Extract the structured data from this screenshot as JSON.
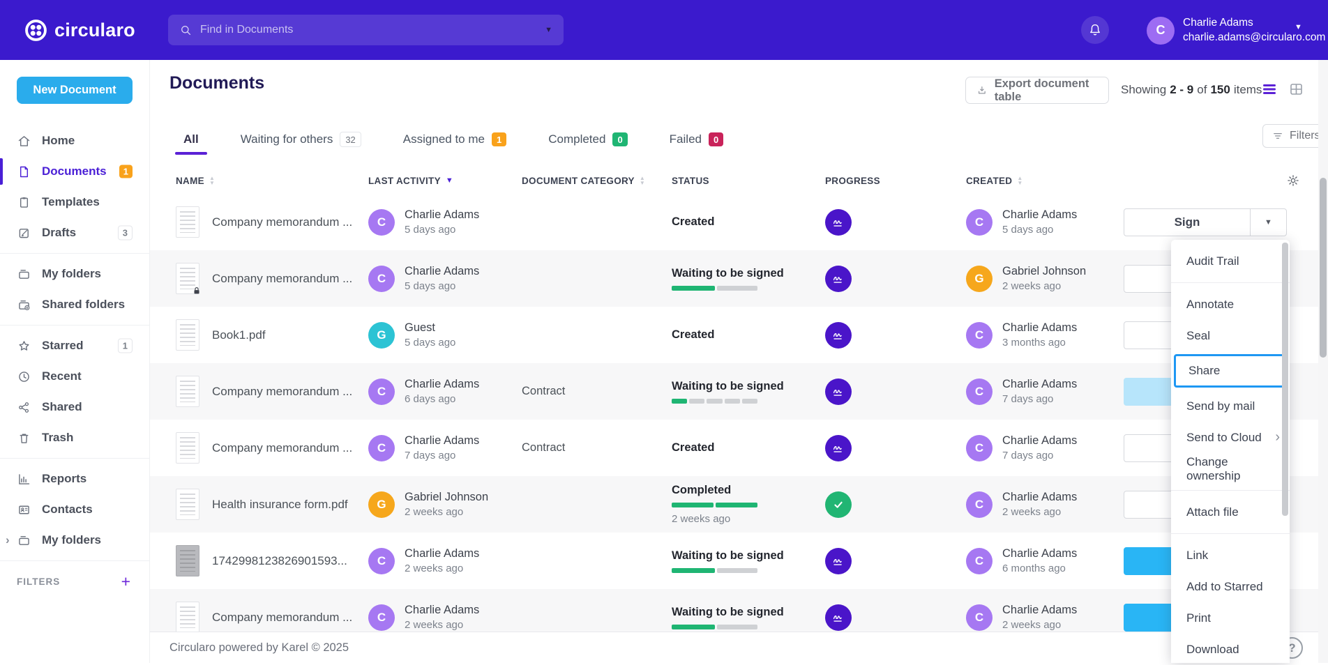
{
  "colors": {
    "topbar_purple": "#3b1acd",
    "accent_purple": "#4a1fd6",
    "new_document_blue": "#2aacec",
    "action_blue": "#29b5f5",
    "orange": "#f9a21b",
    "green": "#1fb573",
    "red": "#c9235a",
    "share_highlight_blue": "#1e97f3"
  },
  "topbar": {
    "brand": "circularo",
    "search_placeholder": "Find in Documents",
    "user_name": "Charlie Adams",
    "user_email": "charlie.adams@circularo.com",
    "user_initial": "C"
  },
  "sidebar": {
    "new_document_label": "New Document",
    "filters_label": "FILTERS",
    "plus": "+",
    "items": [
      {
        "label": "Home",
        "icon": "home"
      },
      {
        "label": "Documents",
        "icon": "document",
        "state": "active",
        "badge": "1",
        "badge_style": "orange"
      },
      {
        "label": "Templates",
        "icon": "template"
      },
      {
        "label": "Drafts",
        "icon": "draft",
        "badge": "3",
        "badge_style": "outline",
        "divider_after": true
      },
      {
        "label": "My folders",
        "icon": "folder"
      },
      {
        "label": "Shared folders",
        "icon": "folder-shared",
        "divider_after": true
      },
      {
        "label": "Starred",
        "icon": "star",
        "badge": "1",
        "badge_style": "outline"
      },
      {
        "label": "Recent",
        "icon": "clock"
      },
      {
        "label": "Shared",
        "icon": "share"
      },
      {
        "label": "Trash",
        "icon": "trash",
        "divider_after": true
      },
      {
        "label": "Reports",
        "icon": "chart"
      },
      {
        "label": "Contacts",
        "icon": "contacts"
      },
      {
        "label": "My folders",
        "icon": "folder",
        "chevron": "›",
        "divider_after": true
      }
    ]
  },
  "header": {
    "title": "Documents",
    "export_label": "Export document table",
    "showing": {
      "prefix": "Showing",
      "range": "2 - 9",
      "of": "of",
      "total": "150",
      "suffix": "items"
    }
  },
  "tabs": [
    {
      "label": "All",
      "state": "active"
    },
    {
      "label": "Waiting for others",
      "badge": "32",
      "badge_style": "outline"
    },
    {
      "label": "Assigned to me",
      "badge": "1",
      "badge_style": "orange"
    },
    {
      "label": "Completed",
      "badge": "0",
      "badge_style": "green"
    },
    {
      "label": "Failed",
      "badge": "0",
      "badge_style": "red"
    }
  ],
  "filters_button_label": "Filters",
  "table": {
    "columns": [
      {
        "label": "NAME",
        "sort": "both"
      },
      {
        "label": "LAST ACTIVITY",
        "sort": "desc"
      },
      {
        "label": "DOCUMENT CATEGORY",
        "sort": "both"
      },
      {
        "label": "STATUS",
        "sort": ""
      },
      {
        "label": "PROGRESS",
        "sort": ""
      },
      {
        "label": "CREATED",
        "sort": "both"
      }
    ],
    "rows": [
      {
        "name": "Company memorandum ...",
        "stripe": "",
        "locked": false,
        "activity": {
          "initial": "C",
          "color": "#a678f2",
          "name": "Charlie Adams",
          "time": "5 days ago"
        },
        "category": "",
        "status": "Created",
        "status_time": "",
        "bar": [],
        "badge": "sign",
        "created": {
          "initial": "C",
          "color": "#a678f2",
          "name": "Charlie Adams",
          "time": "5 days ago"
        },
        "action": {
          "label": "Sign",
          "variant": "default"
        }
      },
      {
        "name": "Company memorandum ...",
        "stripe": "striped",
        "locked": true,
        "activity": {
          "initial": "C",
          "color": "#a678f2",
          "name": "Charlie Adams",
          "time": "5 days ago"
        },
        "category": "",
        "status": "Waiting to be signed",
        "status_time": "",
        "bar": [
          {
            "c": "#1fb573",
            "f": 52
          },
          {
            "c": "#cfd1d4",
            "f": 48
          }
        ],
        "badge": "sign",
        "created": {
          "initial": "G",
          "color": "#f6a71c",
          "name": "Gabriel Johnson",
          "time": "2 weeks ago"
        },
        "action": {
          "label": "Sign",
          "variant": "default"
        }
      },
      {
        "name": "Book1.pdf",
        "stripe": "",
        "locked": false,
        "activity": {
          "initial": "G",
          "color": "#2cc3d4",
          "name": "Guest",
          "time": "5 days ago"
        },
        "category": "",
        "status": "Created",
        "status_time": "",
        "bar": [],
        "badge": "sign",
        "created": {
          "initial": "C",
          "color": "#a678f2",
          "name": "Charlie Adams",
          "time": "3 months ago"
        },
        "action": {
          "label": "Sign",
          "variant": "default"
        }
      },
      {
        "name": "Company memorandum ...",
        "stripe": "striped",
        "locked": false,
        "activity": {
          "initial": "C",
          "color": "#a678f2",
          "name": "Charlie Adams",
          "time": "6 days ago"
        },
        "category": "Contract",
        "status": "Waiting to be signed",
        "status_time": "",
        "bar": [
          {
            "c": "#1fb573",
            "f": 20
          },
          {
            "c": "#cfd1d4",
            "f": 20
          },
          {
            "c": "#cfd1d4",
            "f": 20
          },
          {
            "c": "#cfd1d4",
            "f": 20
          },
          {
            "c": "#cfd1d4",
            "f": 20
          }
        ],
        "badge": "sign",
        "created": {
          "initial": "C",
          "color": "#a678f2",
          "name": "Charlie Adams",
          "time": "7 days ago"
        },
        "action": {
          "label": "Sign",
          "variant": "hover"
        }
      },
      {
        "name": "Company memorandum ...",
        "stripe": "",
        "locked": false,
        "activity": {
          "initial": "C",
          "color": "#a678f2",
          "name": "Charlie Adams",
          "time": "7 days ago"
        },
        "category": "Contract",
        "status": "Created",
        "status_time": "",
        "bar": [],
        "badge": "sign",
        "created": {
          "initial": "C",
          "color": "#a678f2",
          "name": "Charlie Adams",
          "time": "7 days ago"
        },
        "action": {
          "label": "Sign",
          "variant": "default"
        }
      },
      {
        "name": "Health insurance form.pdf",
        "stripe": "striped",
        "locked": false,
        "activity": {
          "initial": "G",
          "color": "#f6a71c",
          "name": "Gabriel Johnson",
          "time": "2 weeks ago"
        },
        "category": "",
        "status": "Completed",
        "status_time": "2 weeks ago",
        "bar": [
          {
            "c": "#1fb573",
            "f": 50
          },
          {
            "c": "#1fb573",
            "f": 50
          }
        ],
        "badge": "check",
        "created": {
          "initial": "C",
          "color": "#a678f2",
          "name": "Charlie Adams",
          "time": "2 weeks ago"
        },
        "action": {
          "label": "Sign",
          "variant": "default"
        }
      },
      {
        "name": "1742998123826901593...",
        "stripe": "",
        "locked": false,
        "thumb": "gray",
        "activity": {
          "initial": "C",
          "color": "#a678f2",
          "name": "Charlie Adams",
          "time": "2 weeks ago"
        },
        "category": "",
        "status": "Waiting to be signed",
        "status_time": "",
        "bar": [
          {
            "c": "#1fb573",
            "f": 52
          },
          {
            "c": "#cfd1d4",
            "f": 48
          }
        ],
        "badge": "sign",
        "created": {
          "initial": "C",
          "color": "#a678f2",
          "name": "Charlie Adams",
          "time": "6 months ago"
        },
        "action": {
          "label": "Sign",
          "variant": "active"
        }
      },
      {
        "name": "Company memorandum ...",
        "stripe": "striped",
        "locked": false,
        "activity": {
          "initial": "C",
          "color": "#a678f2",
          "name": "Charlie Adams",
          "time": "2 weeks ago"
        },
        "category": "",
        "status": "Waiting to be signed",
        "status_time": "",
        "bar": [
          {
            "c": "#1fb573",
            "f": 52
          },
          {
            "c": "#cfd1d4",
            "f": 48
          }
        ],
        "badge": "sign",
        "created": {
          "initial": "C",
          "color": "#a678f2",
          "name": "Charlie Adams",
          "time": "2 weeks ago"
        },
        "action": {
          "label": "Sign",
          "variant": "active"
        }
      }
    ]
  },
  "context_menu": {
    "items": [
      {
        "label": "Audit Trail",
        "divider_after": true
      },
      {
        "label": "Annotate"
      },
      {
        "label": "Seal"
      },
      {
        "label": "Share",
        "cls": "hl"
      },
      {
        "label": "Send by mail"
      },
      {
        "label": "Send to Cloud",
        "submenu": "›"
      },
      {
        "label": "Change ownership",
        "divider_after": true
      },
      {
        "label": "Attach file",
        "divider_after": true
      },
      {
        "label": "Link"
      },
      {
        "label": "Add to Starred"
      },
      {
        "label": "Print"
      },
      {
        "label": "Download"
      }
    ]
  },
  "footer": {
    "copyright": "Circularo powered by Karel © 2025",
    "help": "?"
  }
}
